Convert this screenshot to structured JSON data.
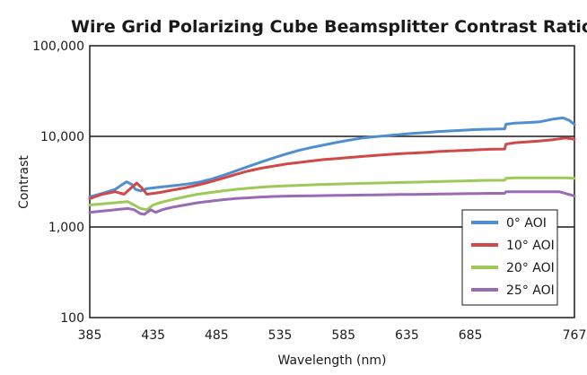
{
  "chart_data": {
    "type": "line",
    "title": "Wire Grid Polarizing Cube Beamsplitter Contrast Ratio",
    "xlabel": "Wavelength (nm)",
    "ylabel": "Contrast",
    "y_scale": "log",
    "xlim": [
      385,
      767
    ],
    "ylim": [
      100,
      100000
    ],
    "x_ticks": [
      "385",
      "435",
      "485",
      "535",
      "585",
      "635",
      "685",
      "767"
    ],
    "x_tick_values": [
      385,
      435,
      485,
      535,
      585,
      635,
      685,
      767
    ],
    "y_ticks": [
      "100",
      "1,000",
      "10,000",
      "100,000"
    ],
    "y_tick_values": [
      100,
      1000,
      10000,
      100000
    ],
    "gridlines_at": [
      1000,
      10000
    ],
    "legend_position": "bottom-right",
    "series": [
      {
        "name": "0° AOI",
        "color": "#4f8fd0",
        "points": [
          [
            385,
            2150
          ],
          [
            395,
            2350
          ],
          [
            405,
            2600
          ],
          [
            410,
            2900
          ],
          [
            414,
            3150
          ],
          [
            418,
            2950
          ],
          [
            421,
            2600
          ],
          [
            425,
            2500
          ],
          [
            430,
            2650
          ],
          [
            440,
            2750
          ],
          [
            450,
            2850
          ],
          [
            460,
            2950
          ],
          [
            470,
            3100
          ],
          [
            480,
            3350
          ],
          [
            490,
            3700
          ],
          [
            500,
            4150
          ],
          [
            510,
            4650
          ],
          [
            520,
            5200
          ],
          [
            530,
            5800
          ],
          [
            540,
            6400
          ],
          [
            550,
            7000
          ],
          [
            560,
            7550
          ],
          [
            570,
            8050
          ],
          [
            580,
            8600
          ],
          [
            590,
            9100
          ],
          [
            600,
            9600
          ],
          [
            610,
            9900
          ],
          [
            620,
            10200
          ],
          [
            630,
            10500
          ],
          [
            640,
            10800
          ],
          [
            650,
            11000
          ],
          [
            660,
            11300
          ],
          [
            670,
            11500
          ],
          [
            680,
            11700
          ],
          [
            690,
            11900
          ],
          [
            700,
            12000
          ],
          [
            712,
            12100
          ],
          [
            713,
            13600
          ],
          [
            720,
            14000
          ],
          [
            730,
            14200
          ],
          [
            740,
            14500
          ],
          [
            750,
            15500
          ],
          [
            758,
            16000
          ],
          [
            763,
            15000
          ],
          [
            767,
            13500
          ]
        ]
      },
      {
        "name": "10° AOI",
        "color": "#d04848",
        "points": [
          [
            385,
            2050
          ],
          [
            395,
            2300
          ],
          [
            405,
            2450
          ],
          [
            412,
            2300
          ],
          [
            417,
            2650
          ],
          [
            422,
            3050
          ],
          [
            426,
            2700
          ],
          [
            430,
            2300
          ],
          [
            440,
            2400
          ],
          [
            450,
            2550
          ],
          [
            460,
            2700
          ],
          [
            470,
            2900
          ],
          [
            480,
            3150
          ],
          [
            490,
            3450
          ],
          [
            500,
            3800
          ],
          [
            510,
            4150
          ],
          [
            520,
            4450
          ],
          [
            530,
            4700
          ],
          [
            540,
            4950
          ],
          [
            550,
            5150
          ],
          [
            560,
            5350
          ],
          [
            570,
            5550
          ],
          [
            580,
            5700
          ],
          [
            590,
            5850
          ],
          [
            600,
            6000
          ],
          [
            610,
            6150
          ],
          [
            620,
            6300
          ],
          [
            630,
            6450
          ],
          [
            640,
            6550
          ],
          [
            650,
            6650
          ],
          [
            660,
            6800
          ],
          [
            670,
            6900
          ],
          [
            680,
            7000
          ],
          [
            690,
            7100
          ],
          [
            700,
            7200
          ],
          [
            712,
            7250
          ],
          [
            713,
            8200
          ],
          [
            720,
            8500
          ],
          [
            730,
            8700
          ],
          [
            740,
            8900
          ],
          [
            750,
            9200
          ],
          [
            760,
            9600
          ],
          [
            767,
            9300
          ]
        ]
      },
      {
        "name": "20° AOI",
        "color": "#9dc85a",
        "points": [
          [
            385,
            1750
          ],
          [
            395,
            1800
          ],
          [
            405,
            1850
          ],
          [
            415,
            1900
          ],
          [
            420,
            1750
          ],
          [
            425,
            1600
          ],
          [
            430,
            1550
          ],
          [
            435,
            1750
          ],
          [
            440,
            1850
          ],
          [
            450,
            2000
          ],
          [
            460,
            2150
          ],
          [
            470,
            2300
          ],
          [
            480,
            2400
          ],
          [
            490,
            2500
          ],
          [
            500,
            2600
          ],
          [
            510,
            2680
          ],
          [
            520,
            2750
          ],
          [
            530,
            2800
          ],
          [
            540,
            2850
          ],
          [
            550,
            2880
          ],
          [
            560,
            2920
          ],
          [
            570,
            2950
          ],
          [
            580,
            2980
          ],
          [
            590,
            3000
          ],
          [
            600,
            3030
          ],
          [
            610,
            3050
          ],
          [
            620,
            3080
          ],
          [
            630,
            3100
          ],
          [
            640,
            3120
          ],
          [
            650,
            3150
          ],
          [
            660,
            3170
          ],
          [
            670,
            3200
          ],
          [
            680,
            3220
          ],
          [
            690,
            3250
          ],
          [
            700,
            3270
          ],
          [
            712,
            3280
          ],
          [
            713,
            3450
          ],
          [
            720,
            3480
          ],
          [
            740,
            3480
          ],
          [
            760,
            3480
          ],
          [
            767,
            3450
          ]
        ]
      },
      {
        "name": "25° AOI",
        "color": "#9a6bb5",
        "points": [
          [
            385,
            1450
          ],
          [
            395,
            1500
          ],
          [
            405,
            1550
          ],
          [
            415,
            1600
          ],
          [
            420,
            1550
          ],
          [
            425,
            1400
          ],
          [
            428,
            1380
          ],
          [
            433,
            1550
          ],
          [
            437,
            1450
          ],
          [
            442,
            1550
          ],
          [
            450,
            1650
          ],
          [
            460,
            1750
          ],
          [
            470,
            1850
          ],
          [
            480,
            1930
          ],
          [
            490,
            2000
          ],
          [
            500,
            2060
          ],
          [
            510,
            2100
          ],
          [
            520,
            2140
          ],
          [
            530,
            2170
          ],
          [
            540,
            2190
          ],
          [
            550,
            2200
          ],
          [
            560,
            2210
          ],
          [
            570,
            2220
          ],
          [
            580,
            2230
          ],
          [
            590,
            2240
          ],
          [
            600,
            2250
          ],
          [
            610,
            2260
          ],
          [
            620,
            2270
          ],
          [
            630,
            2280
          ],
          [
            640,
            2290
          ],
          [
            650,
            2300
          ],
          [
            660,
            2310
          ],
          [
            670,
            2320
          ],
          [
            680,
            2330
          ],
          [
            690,
            2340
          ],
          [
            700,
            2350
          ],
          [
            712,
            2350
          ],
          [
            713,
            2450
          ],
          [
            720,
            2450
          ],
          [
            740,
            2450
          ],
          [
            755,
            2450
          ],
          [
            767,
            2200
          ]
        ]
      }
    ]
  }
}
